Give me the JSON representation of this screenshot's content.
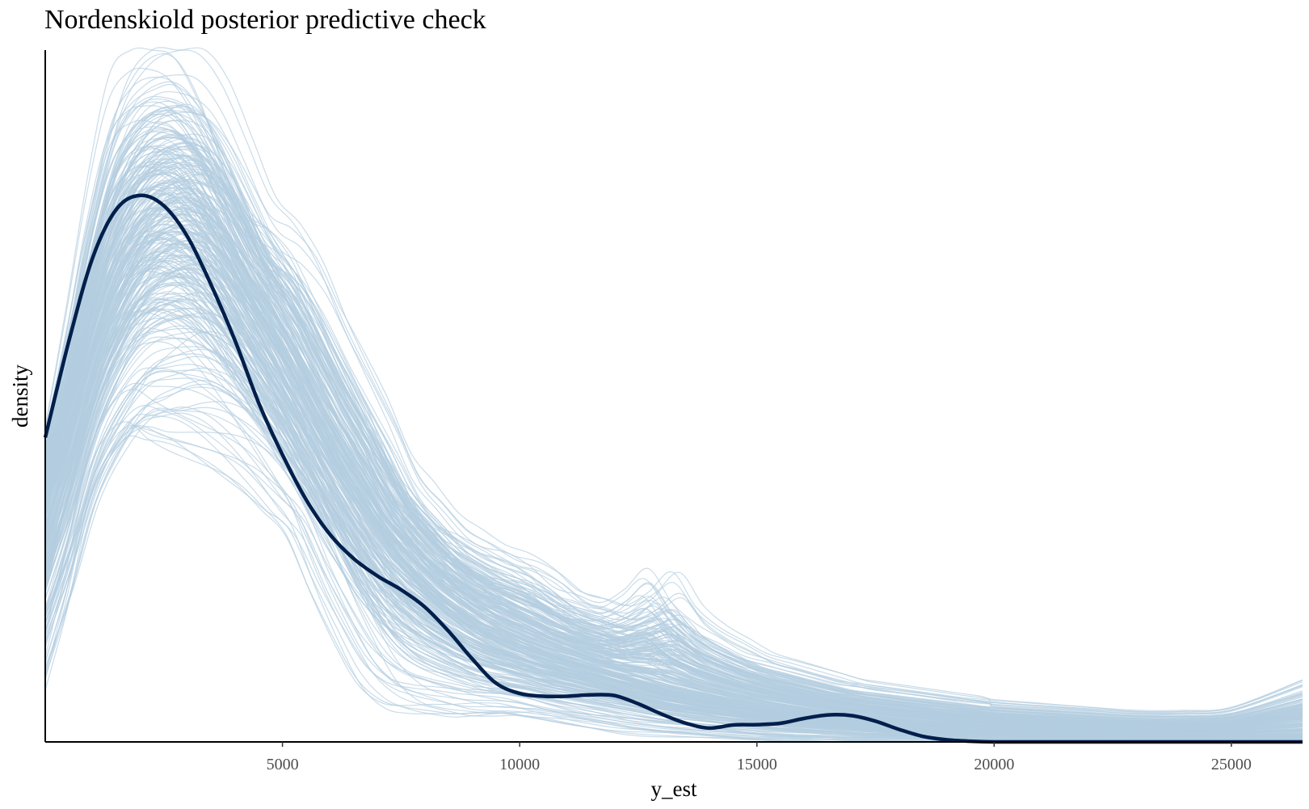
{
  "chart_data": {
    "type": "line",
    "title": "Nordenskiold posterior predictive check",
    "xlabel": "y_est",
    "ylabel": "density",
    "xlim": [
      0,
      26500
    ],
    "ylim": [
      0,
      1.0
    ],
    "x_ticks": [
      5000,
      10000,
      15000,
      20000,
      25000
    ],
    "x_tick_labels": [
      "5000",
      "10000",
      "15000",
      "20000",
      "25000"
    ],
    "y_ticks_shown": false,
    "grid": false,
    "legend": "none",
    "colors": {
      "observed": "#011f4b",
      "replicates": "#b3cde0"
    },
    "series": [
      {
        "role": "observed",
        "x": [
          0,
          500,
          1000,
          1500,
          2000,
          2500,
          3000,
          3500,
          4000,
          4500,
          5000,
          5500,
          6000,
          6500,
          7000,
          7500,
          8000,
          8500,
          9000,
          9500,
          10000,
          10500,
          11000,
          11500,
          12000,
          12500,
          13000,
          13500,
          14000,
          14500,
          15000,
          15500,
          16000,
          16500,
          17000,
          17500,
          18000,
          18500,
          19000,
          19500,
          20000,
          21000,
          22000,
          23000,
          24000,
          25000,
          26500
        ],
        "values": [
          0.44,
          0.58,
          0.7,
          0.77,
          0.79,
          0.775,
          0.73,
          0.66,
          0.58,
          0.49,
          0.415,
          0.35,
          0.3,
          0.265,
          0.24,
          0.22,
          0.195,
          0.16,
          0.12,
          0.085,
          0.07,
          0.066,
          0.066,
          0.068,
          0.067,
          0.055,
          0.04,
          0.027,
          0.02,
          0.0245,
          0.025,
          0.027,
          0.034,
          0.039,
          0.038,
          0.03,
          0.018,
          0.008,
          0.003,
          0.001,
          0.0,
          0.0,
          0.0,
          0.0,
          0.0,
          0.0,
          0.0
        ]
      }
    ],
    "replicate_draws": {
      "count": 300,
      "x": [
        0,
        500,
        1000,
        1500,
        2000,
        2500,
        3000,
        3500,
        4000,
        4500,
        5000,
        5500,
        6000,
        6500,
        7000,
        7500,
        8000,
        8500,
        9000,
        9500,
        10000,
        10500,
        11000,
        11500,
        12000,
        12500,
        13000,
        13500,
        14000,
        14500,
        15000,
        15500,
        16000,
        16500,
        17000,
        17500,
        18000,
        18500,
        19000,
        19500,
        20000,
        21000,
        22000,
        23000,
        24000,
        25000,
        26500
      ],
      "mean": [
        0.34,
        0.45,
        0.57,
        0.66,
        0.72,
        0.75,
        0.75,
        0.72,
        0.67,
        0.61,
        0.55,
        0.48,
        0.42,
        0.365,
        0.315,
        0.27,
        0.235,
        0.205,
        0.18,
        0.16,
        0.145,
        0.13,
        0.12,
        0.11,
        0.1,
        0.09,
        0.08,
        0.072,
        0.065,
        0.058,
        0.052,
        0.046,
        0.041,
        0.036,
        0.032,
        0.029,
        0.026,
        0.023,
        0.021,
        0.019,
        0.017,
        0.015,
        0.013,
        0.012,
        0.011,
        0.01,
        0.008
      ],
      "lower": [
        0.09,
        0.2,
        0.33,
        0.4,
        0.44,
        0.44,
        0.44,
        0.43,
        0.41,
        0.38,
        0.34,
        0.3,
        0.22,
        0.15,
        0.09,
        0.06,
        0.05,
        0.045,
        0.04,
        0.04,
        0.04,
        0.035,
        0.03,
        0.025,
        0.02,
        0.015,
        0.012,
        0.01,
        0.008,
        0.006,
        0.004,
        0.003,
        0.002,
        0.002,
        0.001,
        0.001,
        0.001,
        0.0,
        0.0,
        0.0,
        0.0,
        0.0,
        0.0,
        0.0,
        0.0,
        0.0,
        0.0
      ],
      "upper": [
        0.45,
        0.62,
        0.8,
        0.94,
        0.99,
        1.0,
        0.99,
        0.94,
        0.86,
        0.78,
        0.75,
        0.7,
        0.62,
        0.55,
        0.48,
        0.4,
        0.36,
        0.32,
        0.3,
        0.28,
        0.27,
        0.25,
        0.22,
        0.21,
        0.2,
        0.22,
        0.25,
        0.2,
        0.17,
        0.15,
        0.13,
        0.12,
        0.11,
        0.1,
        0.09,
        0.085,
        0.08,
        0.075,
        0.07,
        0.065,
        0.06,
        0.055,
        0.05,
        0.045,
        0.045,
        0.05,
        0.09
      ]
    }
  }
}
